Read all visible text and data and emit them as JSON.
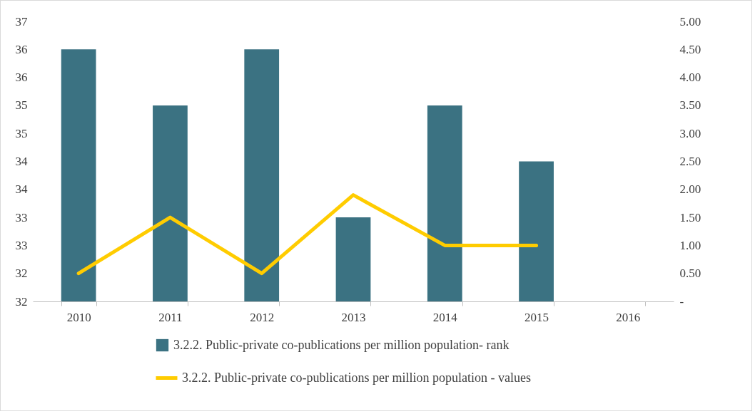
{
  "chart_data": {
    "type": "bar",
    "categories": [
      "2010",
      "2011",
      "2012",
      "2013",
      "2014",
      "2015",
      "2016"
    ],
    "series": [
      {
        "name": "3.2.2. Public-private co-publications per million population- rank",
        "color": "#3b7282",
        "values": [
          36.5,
          35.5,
          36.5,
          33.5,
          35.5,
          34.5,
          null
        ]
      },
      {
        "name": "3.2.2. Public-private co-publications per million population - values",
        "type": "line",
        "axis": "y2",
        "color": "#ffcc00",
        "values": [
          0.5,
          1.5,
          0.5,
          1.9,
          1.0,
          1.0,
          null
        ]
      }
    ],
    "ylim": [
      32,
      37
    ],
    "yticks": [
      32,
      {
        "value": 32.5,
        "label": "32"
      },
      33,
      {
        "value": 33.5,
        "label": "33"
      },
      34,
      {
        "value": 34.5,
        "label": "34"
      },
      35,
      {
        "value": 35.5,
        "label": "35"
      },
      36,
      {
        "value": 36.5,
        "label": "36"
      },
      37
    ],
    "y2lim": [
      0,
      5
    ],
    "y2ticks": [
      {
        "value": 0,
        "label": "-"
      },
      {
        "value": 0.5,
        "label": "0.50"
      },
      {
        "value": 1,
        "label": "1.00"
      },
      {
        "value": 1.5,
        "label": "1.50"
      },
      {
        "value": 2,
        "label": "2.00"
      },
      {
        "value": 2.5,
        "label": "2.50"
      },
      {
        "value": 3,
        "label": "3.00"
      },
      {
        "value": 3.5,
        "label": "3.50"
      },
      {
        "value": 4,
        "label": "4.00"
      },
      {
        "value": 4.5,
        "label": "4.50"
      },
      {
        "value": 5,
        "label": "5.00"
      }
    ],
    "grid": false,
    "legend": "bottom",
    "marker": "none",
    "line_style": "solid"
  }
}
